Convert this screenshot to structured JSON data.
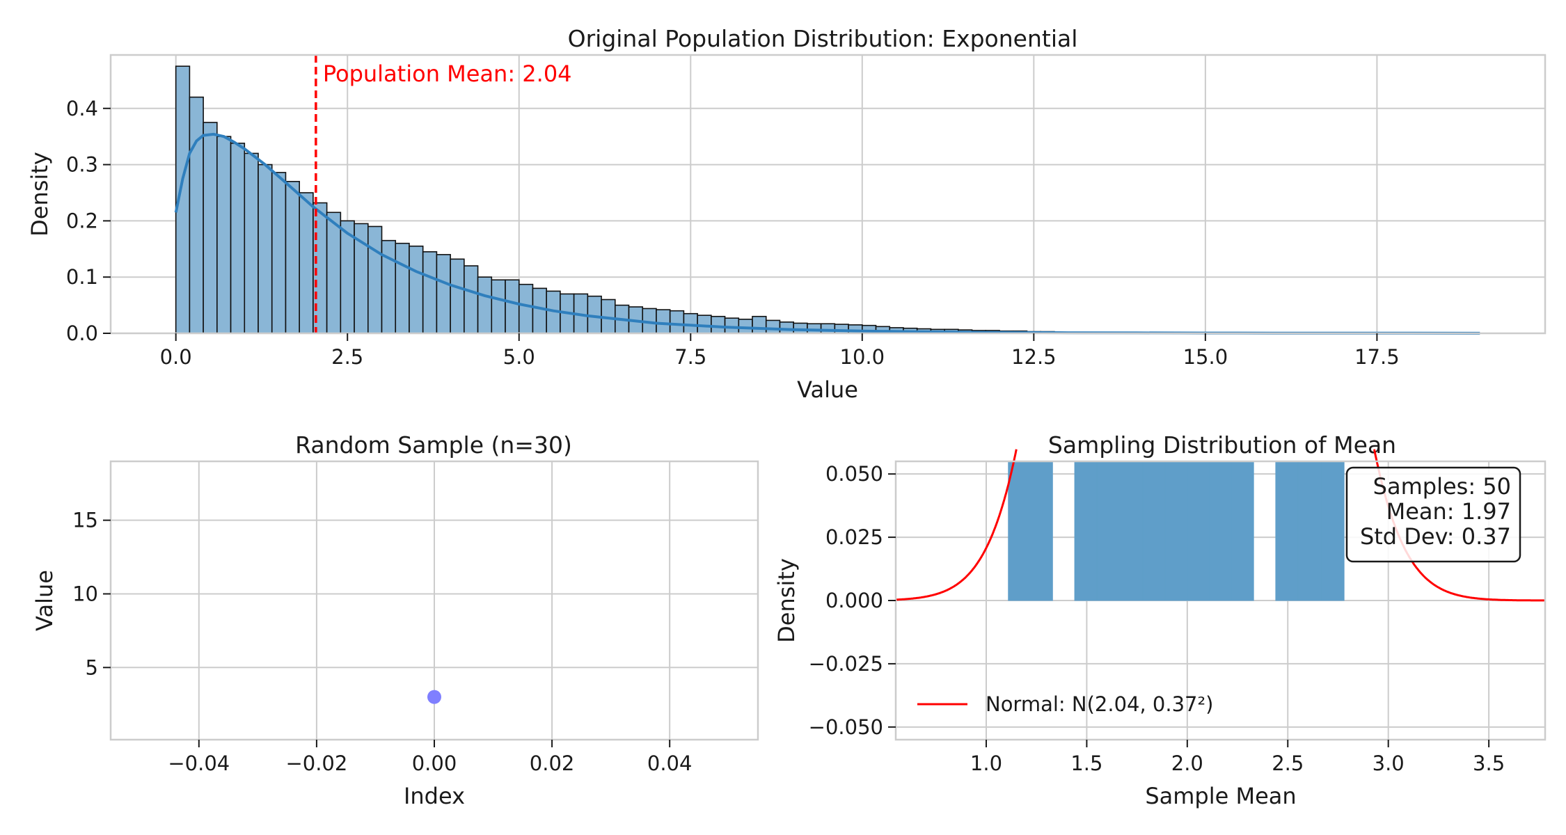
{
  "chart_data": [
    {
      "type": "histogram",
      "title": "Original Population Distribution: Exponential",
      "xlabel": "Value",
      "ylabel": "Density",
      "xlim": [
        -0.95,
        19.95
      ],
      "ylim": [
        0,
        0.495
      ],
      "xticks": [
        "0.0",
        "2.5",
        "5.0",
        "7.5",
        "10.0",
        "12.5",
        "15.0",
        "17.5"
      ],
      "xtick_values": [
        0,
        2.5,
        5,
        7.5,
        10,
        12.5,
        15,
        17.5
      ],
      "yticks": [
        "0.0",
        "0.1",
        "0.2",
        "0.3",
        "0.4"
      ],
      "ytick_values": [
        0,
        0.1,
        0.2,
        0.3,
        0.4
      ],
      "bin_width": 0.2,
      "bin_start": 0,
      "densities": [
        0.475,
        0.42,
        0.375,
        0.35,
        0.338,
        0.32,
        0.3,
        0.286,
        0.27,
        0.25,
        0.232,
        0.215,
        0.2,
        0.195,
        0.19,
        0.165,
        0.16,
        0.155,
        0.145,
        0.14,
        0.132,
        0.12,
        0.1,
        0.095,
        0.095,
        0.087,
        0.08,
        0.075,
        0.07,
        0.07,
        0.066,
        0.06,
        0.05,
        0.047,
        0.044,
        0.042,
        0.04,
        0.035,
        0.032,
        0.03,
        0.027,
        0.025,
        0.03,
        0.023,
        0.02,
        0.018,
        0.017,
        0.017,
        0.016,
        0.015,
        0.014,
        0.012,
        0.01,
        0.009,
        0.008,
        0.007,
        0.007,
        0.006,
        0.005,
        0.005,
        0.004,
        0.004,
        0.003,
        0.003,
        0.002,
        0.002,
        0.002,
        0.002,
        0.001,
        0.001,
        0.001,
        0.001,
        0.001
      ],
      "kde_x": [
        0,
        0.1,
        0.2,
        0.3,
        0.4,
        0.55,
        0.7,
        0.85,
        1.0,
        1.3,
        1.6,
        2.0,
        2.5,
        3.0,
        3.5,
        4.0,
        4.5,
        5.0,
        5.5,
        6.0,
        7.0,
        8.0,
        9.0,
        10.0,
        11.0,
        12.0,
        13.0,
        14.0,
        15.0,
        16.0,
        17.0,
        18.0,
        19.0
      ],
      "kde_y": [
        0.215,
        0.275,
        0.32,
        0.342,
        0.352,
        0.354,
        0.35,
        0.34,
        0.328,
        0.3,
        0.268,
        0.225,
        0.178,
        0.14,
        0.11,
        0.086,
        0.067,
        0.052,
        0.04,
        0.031,
        0.018,
        0.011,
        0.0065,
        0.004,
        0.0025,
        0.0015,
        0.001,
        0.0007,
        0.0005,
        0.0004,
        0.0003,
        0.0002,
        0.0001
      ],
      "mean_line": {
        "x": 2.04,
        "label": "Population Mean: 2.04",
        "color": "#ff0000"
      },
      "bar_color": "#8ab6d6",
      "kde_color": "#2f7fbd",
      "grid": true
    },
    {
      "type": "scatter",
      "title": "Random Sample (n=30)",
      "xlabel": "Index",
      "ylabel": "Value",
      "xlim": [
        -0.055,
        0.055
      ],
      "ylim": [
        0.1,
        19.0
      ],
      "xticks": [
        "−0.04",
        "−0.02",
        "0.00",
        "0.02",
        "0.04"
      ],
      "xtick_values": [
        -0.04,
        -0.02,
        0,
        0.02,
        0.04
      ],
      "yticks": [
        "5",
        "10",
        "15"
      ],
      "ytick_values": [
        5,
        10,
        15
      ],
      "points": [
        {
          "x": 0,
          "y": 3.0
        }
      ],
      "point_color": "#7f7fff",
      "grid": true
    },
    {
      "type": "histogram",
      "title": "Sampling Distribution of Mean",
      "xlabel": "Sample Mean",
      "ylabel": "Density",
      "xlim": [
        0.55,
        3.78
      ],
      "ylim": [
        -0.055,
        0.055
      ],
      "xticks": [
        "1.0",
        "1.5",
        "2.0",
        "2.5",
        "3.0",
        "3.5"
      ],
      "xtick_values": [
        1.0,
        1.5,
        2.0,
        2.5,
        3.0,
        3.5
      ],
      "yticks": [
        "0.050",
        "0.025",
        "0.000",
        "−0.025",
        "−0.050"
      ],
      "ytick_values": [
        0.05,
        0.025,
        0,
        -0.025,
        -0.05
      ],
      "bins": [
        {
          "x0": 1.11,
          "x1": 1.33
        },
        {
          "x0": 1.44,
          "x1": 1.55
        },
        {
          "x0": 1.55,
          "x1": 1.67
        },
        {
          "x0": 1.67,
          "x1": 1.78
        },
        {
          "x0": 1.78,
          "x1": 1.89
        },
        {
          "x0": 1.89,
          "x1": 2.0
        },
        {
          "x0": 2.0,
          "x1": 2.11
        },
        {
          "x0": 2.11,
          "x1": 2.22
        },
        {
          "x0": 2.22,
          "x1": 2.33
        },
        {
          "x0": 2.44,
          "x1": 2.55
        },
        {
          "x0": 2.55,
          "x1": 2.67
        },
        {
          "x0": 2.67,
          "x1": 2.78
        }
      ],
      "bar_color": "#5f9ec9",
      "normal_curve": {
        "mean": 2.04,
        "std": 0.37,
        "color": "#ff0000",
        "label": "Normal: N(2.04, 0.37²)"
      },
      "stats_box": [
        "Samples: 50",
        "Mean: 1.97",
        "Std Dev: 0.37"
      ],
      "legend_position": "lower left",
      "stats_position": "upper right",
      "grid": true
    }
  ]
}
